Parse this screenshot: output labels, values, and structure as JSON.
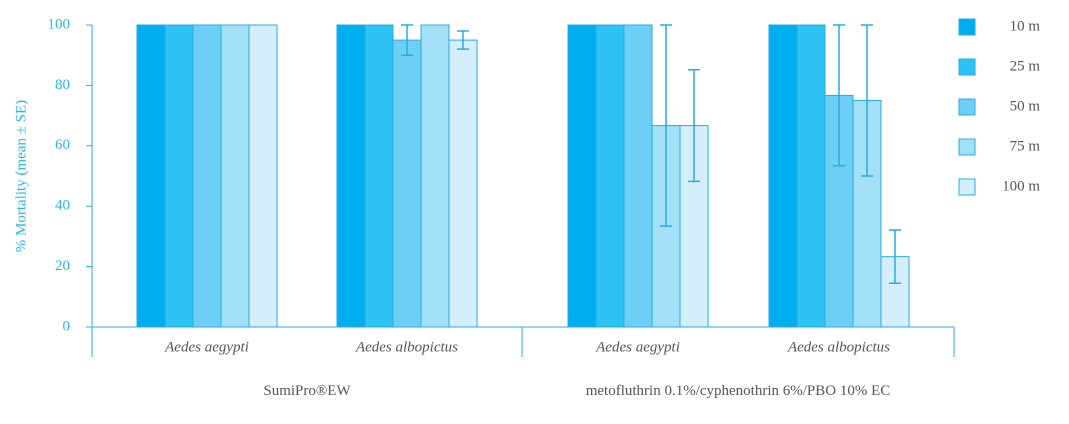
{
  "chart_data": {
    "type": "bar",
    "ylabel": "% Mortality (mean ± SE)",
    "categories": [
      "Aedes aegypti",
      "Aedes albopictus",
      "Aedes aegypti",
      "Aedes albopictus"
    ],
    "group_labels": [
      "SumiPro®EW",
      "metofluthrin 0.1%/cyphenothrin 6%/PBO 10% EC"
    ],
    "series": [
      {
        "name": "10 m",
        "color": "#00aeef",
        "values": [
          100,
          100,
          100,
          100
        ],
        "errors": [
          0,
          0,
          0,
          0
        ]
      },
      {
        "name": "25 m",
        "color": "#2cc2f3",
        "values": [
          100,
          100,
          100,
          100
        ],
        "errors": [
          0,
          0,
          0,
          0
        ]
      },
      {
        "name": "50 m",
        "color": "#6ecff6",
        "values": [
          100,
          95,
          100,
          76.7
        ],
        "errors": [
          0,
          5,
          0,
          23.3
        ]
      },
      {
        "name": "75 m",
        "color": "#a4dff8",
        "values": [
          100,
          100,
          66.7,
          75
        ],
        "errors": [
          0,
          0,
          33.3,
          25
        ]
      },
      {
        "name": "100 m",
        "color": "#d4effb",
        "values": [
          100,
          95,
          66.7,
          23.3
        ],
        "errors": [
          0,
          3,
          18.5,
          8.8
        ]
      }
    ],
    "ylim": [
      0,
      100
    ],
    "yticks": [
      0,
      20,
      40,
      60,
      80,
      100
    ],
    "legend": "right"
  }
}
